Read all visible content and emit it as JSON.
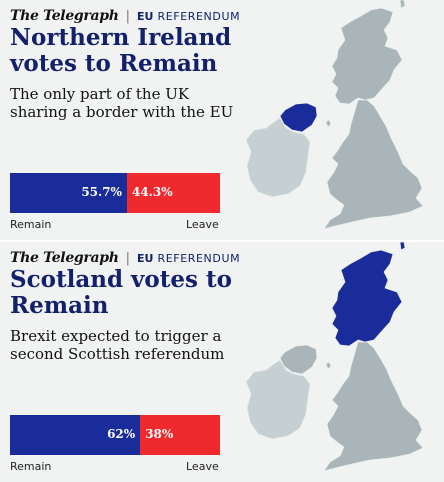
{
  "panels": [
    {
      "masthead": "The Telegraph",
      "separator": "|",
      "section_eu": "EU",
      "section_ref": "REFERENDUM",
      "headline": "Northern Ireland votes to Remain",
      "subhead": "The only part of the UK sharing a border with the EU",
      "remain_pct_label": "55.7%",
      "leave_pct_label": "44.3%",
      "remain_value": 55.7,
      "leave_value": 44.3,
      "remain_label": "Remain",
      "leave_label": "Leave",
      "highlight_region": "Northern Ireland"
    },
    {
      "masthead": "The Telegraph",
      "separator": "|",
      "section_eu": "EU",
      "section_ref": "REFERENDUM",
      "headline": "Scotland votes to Remain",
      "subhead": "Brexit expected to trigger a second Scottish referendum",
      "remain_pct_label": "62%",
      "leave_pct_label": "38%",
      "remain_value": 62,
      "leave_value": 38,
      "remain_label": "Remain",
      "leave_label": "Leave",
      "highlight_region": "Scotland"
    }
  ],
  "colors": {
    "remain": "#1a2b9a",
    "leave": "#ee2a2f",
    "headline": "#13206b",
    "map_land": "#a9b5b8",
    "background": "#f1f3f3"
  }
}
